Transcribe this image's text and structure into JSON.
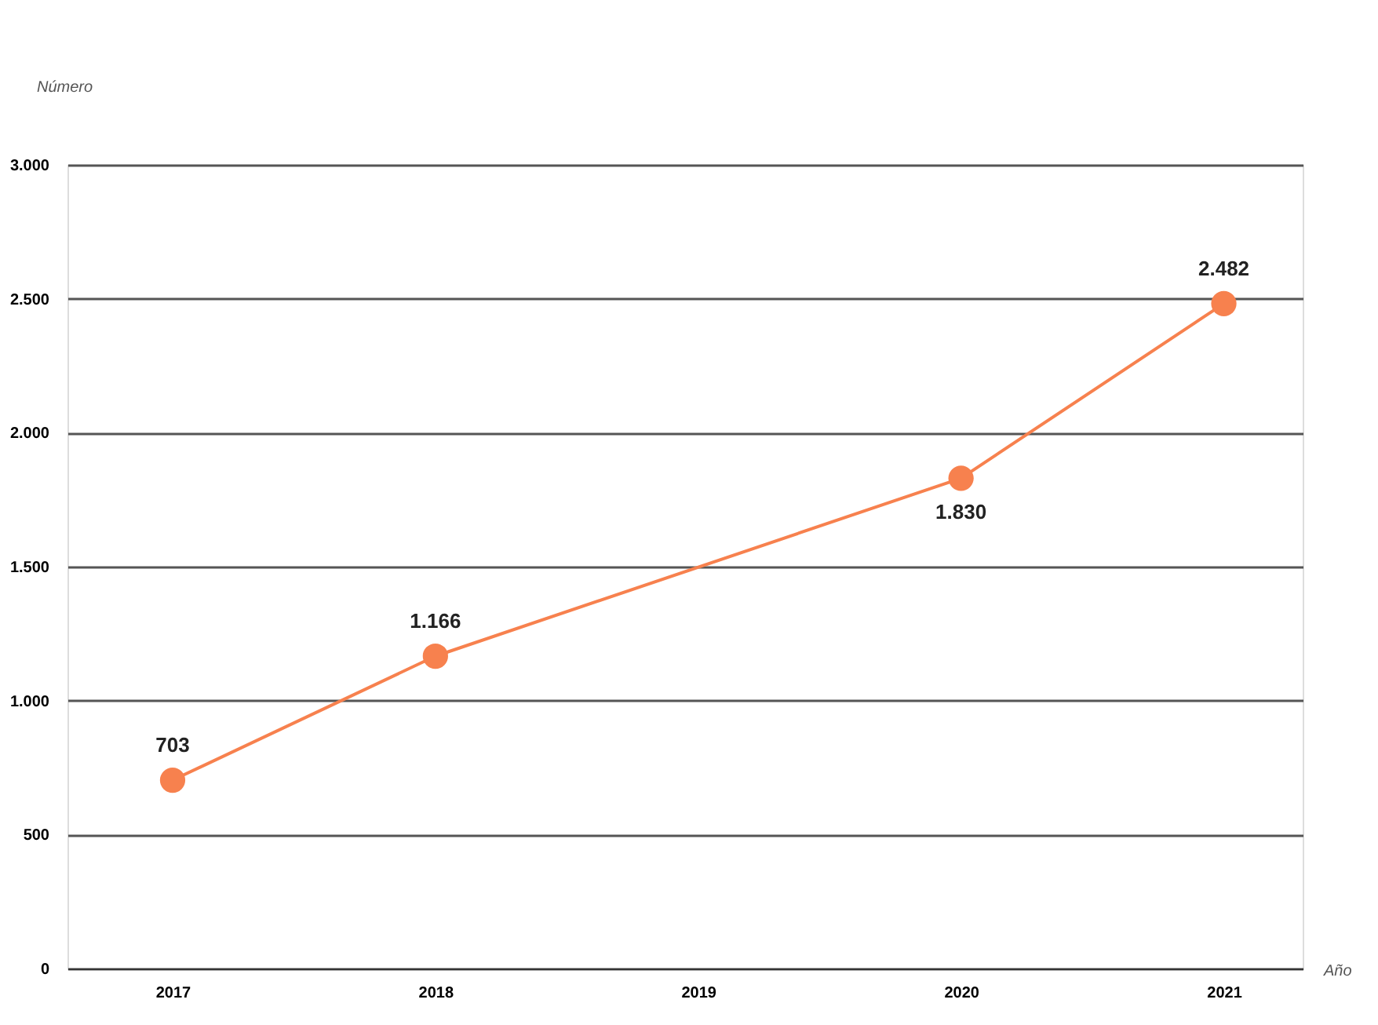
{
  "chart_data": {
    "type": "line",
    "xlabel": "Año",
    "ylabel": "Número",
    "x": [
      2017,
      2018,
      2020,
      2021
    ],
    "values": [
      703,
      1166,
      1830,
      2482
    ],
    "value_labels": [
      "703",
      "1.166",
      "1.830",
      "2.482"
    ],
    "color": "#f7814e",
    "marker": "circle",
    "line_style": "solid",
    "xlim": [
      2016.6,
      2021.3
    ],
    "xticks": [
      2017,
      2018,
      2019,
      2020,
      2021
    ],
    "ylim": [
      0,
      3000
    ],
    "yticks": [
      0,
      {
        "value": 500,
        "label": "500"
      },
      {
        "value": 1000,
        "label": "1.000"
      },
      {
        "value": 1500,
        "label": "1.500"
      },
      {
        "value": 2000,
        "label": "2.000"
      },
      {
        "value": 2500,
        "label": "2.500"
      },
      {
        "value": 3000,
        "label": "3.000"
      }
    ],
    "grid": "y"
  }
}
